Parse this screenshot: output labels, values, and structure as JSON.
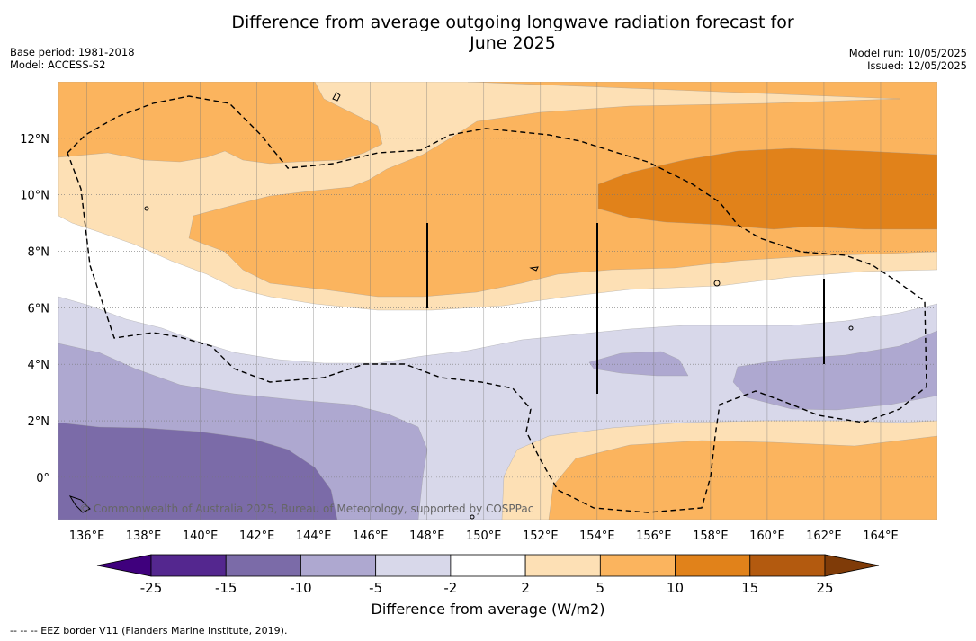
{
  "title_line1": "Difference from average outgoing longwave radiation forecast for",
  "title_line2": "June 2025",
  "base_period": "Base period: 1981-2018",
  "model": "Model: ACCESS-S2",
  "model_run": "Model run: 10/05/2025",
  "issued": "Issued: 12/05/2025",
  "copyright": "© Commonwealth of Australia 2025, Bureau of Meteorology, supported by COSPPac",
  "colorbar_label": "Difference from average (W/m2)",
  "footnote": "--  --  -- EEZ border V11 (Flanders Marine Institute, 2019).",
  "map": {
    "lon_range": [
      135,
      166
    ],
    "lat_range": [
      -1.5,
      14
    ],
    "lon_ticks": [
      {
        "value": 136,
        "label": "136°E"
      },
      {
        "value": 138,
        "label": "138°E"
      },
      {
        "value": 140,
        "label": "140°E"
      },
      {
        "value": 142,
        "label": "142°E"
      },
      {
        "value": 144,
        "label": "144°E"
      },
      {
        "value": 146,
        "label": "146°E"
      },
      {
        "value": 148,
        "label": "148°E"
      },
      {
        "value": 150,
        "label": "150°E"
      },
      {
        "value": 152,
        "label": "152°E"
      },
      {
        "value": 154,
        "label": "154°E"
      },
      {
        "value": 156,
        "label": "156°E"
      },
      {
        "value": 158,
        "label": "158°E"
      },
      {
        "value": 160,
        "label": "160°E"
      },
      {
        "value": 162,
        "label": "162°E"
      },
      {
        "value": 164,
        "label": "164°E"
      }
    ],
    "lat_ticks": [
      {
        "value": 0,
        "label": "0°"
      },
      {
        "value": 2,
        "label": "2°N"
      },
      {
        "value": 4,
        "label": "4°N"
      },
      {
        "value": 6,
        "label": "6°N"
      },
      {
        "value": 8,
        "label": "8°N"
      },
      {
        "value": 10,
        "label": "10°N"
      },
      {
        "value": 12,
        "label": "12°N"
      }
    ]
  },
  "colorbar": {
    "boundaries": [
      "-25",
      "-15",
      "-10",
      "-5",
      "-2",
      "2",
      "5",
      "10",
      "15",
      "25"
    ],
    "colors": [
      "#54278f",
      "#7b6ba8",
      "#aea8d0",
      "#d8d8ea",
      "#ffffff",
      "#fde0b5",
      "#fbb45e",
      "#e1821a",
      "#b35a0f"
    ],
    "under_color": "#3f007d",
    "over_color": "#7f3b08"
  },
  "colors": {
    "neg_strong": "#7b6ba8",
    "neg_mid": "#aea8d0",
    "neg_light": "#d8d8ea",
    "pos_light": "#fde0b5",
    "pos_mid": "#fbb45e",
    "pos_strong": "#e1821a"
  }
}
